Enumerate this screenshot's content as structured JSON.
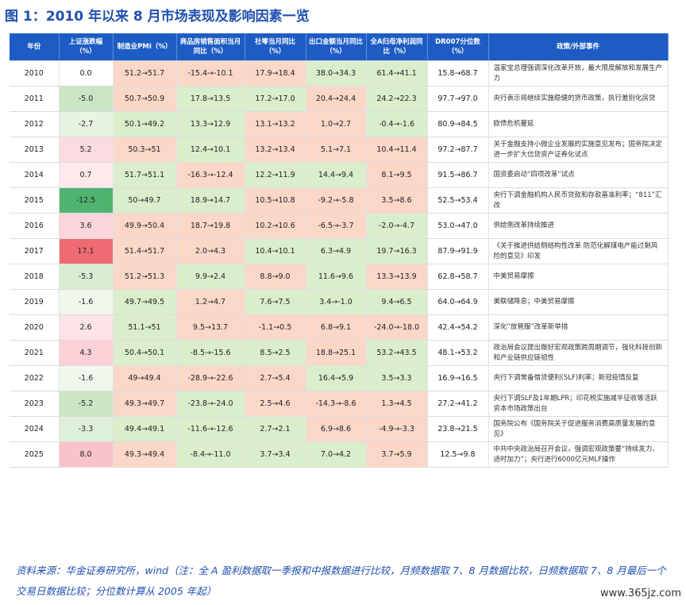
{
  "title": "图 1：2010 年以来 8 月市场表现及影响因素一览",
  "headers": [
    "年份",
    "上证涨跌幅（%）",
    "制造业PMI（%）",
    "商品房销售面积当月同比（%）",
    "社零当月同比（%）",
    "出口金额当月同比（%）",
    "全A归母净利润同比（%）",
    "DR007分位数（%）",
    "政策/外部事件"
  ],
  "rows": [
    {
      "year": "2010",
      "sse": "0.0",
      "pmi": "51.2→51.7",
      "house": "-15.4→-10.1",
      "retail": "17.9→18.4",
      "export": "38.0→34.3",
      "profit": "61.4→41.1",
      "dr": "15.8→68.7",
      "event": "温家宝总理强调深化改革开放，最大限度解放和发展生产力"
    },
    {
      "year": "2011",
      "sse": "-5.0",
      "pmi": "50.7→50.9",
      "house": "17.8→13.5",
      "retail": "17.2→17.0",
      "export": "20.4→24.4",
      "profit": "24.2→22.3",
      "dr": "97.7→97.0",
      "event": "央行表示将继续实施稳健的货币政策，执行差别化房贷"
    },
    {
      "year": "2012",
      "sse": "-2.7",
      "pmi": "50.1→49.2",
      "house": "13.3→12.9",
      "retail": "13.1→13.2",
      "export": "1.0→2.7",
      "profit": "-0.4→-1.6",
      "dr": "80.9→84.5",
      "event": "欧债危机蔓延"
    },
    {
      "year": "2013",
      "sse": "5.2",
      "pmi": "50.3→51",
      "house": "12.4→10.1",
      "retail": "13.2→13.4",
      "export": "5.1→7.1",
      "profit": "10.4→11.4",
      "dr": "97.2→87.7",
      "event": "关于金融支持小微企业发展的实施意见发布；国务院决定进一步扩大信贷资产证券化试点"
    },
    {
      "year": "2014",
      "sse": "0.7",
      "pmi": "51.7→51.1",
      "house": "-16.3→-12.4",
      "retail": "12.2→11.9",
      "export": "14.4→9.4",
      "profit": "8.1→9.5",
      "dr": "91.5→86.7",
      "event": "国资委启动“四项改革”试点"
    },
    {
      "year": "2015",
      "sse": "-12.5",
      "pmi": "50→49.7",
      "house": "18.9→14.7",
      "retail": "10.5→10.8",
      "export": "-9.2→-5.8",
      "profit": "3.5→8.6",
      "dr": "52.5→53.4",
      "event": "央行下调金融机构人民币贷款和存款基准利率；“811”汇改"
    },
    {
      "year": "2016",
      "sse": "3.6",
      "pmi": "49.9→50.4",
      "house": "18.7→19.8",
      "retail": "10.2→10.6",
      "export": "-6.5→-3.7",
      "profit": "-2.0→-4.7",
      "dr": "53.0→47.0",
      "event": "供给侧改革持续推进"
    },
    {
      "year": "2017",
      "sse": "17.1",
      "pmi": "51.4→51.7",
      "house": "2.0→4.3",
      "retail": "10.4→10.1",
      "export": "6.3→4.9",
      "profit": "19.7→16.3",
      "dr": "87.9→91.9",
      "event": "《关于推进供给侧结构性改革 防范化解煤电产能过剩风险的意见》印发"
    },
    {
      "year": "2018",
      "sse": "-5.3",
      "pmi": "51.2→51.3",
      "house": "9.9→2.4",
      "retail": "8.8→9.0",
      "export": "11.6→9.6",
      "profit": "13.3→13.9",
      "dr": "62.8→58.7",
      "event": "中美贸易摩擦"
    },
    {
      "year": "2019",
      "sse": "-1.6",
      "pmi": "49.7→49.5",
      "house": "1.2→4.7",
      "retail": "7.6→7.5",
      "export": "3.4→-1.0",
      "profit": "9.4→6.5",
      "dr": "64.0→64.9",
      "event": "美联储降息；中美贸易摩擦"
    },
    {
      "year": "2020",
      "sse": "2.6",
      "pmi": "51.1→51",
      "house": "9.5→13.7",
      "retail": "-1.1→0.5",
      "export": "6.8→9.1",
      "profit": "-24.0→-18.0",
      "dr": "42.4→54.2",
      "event": "深化“放管服”改革新举措"
    },
    {
      "year": "2021",
      "sse": "4.3",
      "pmi": "50.4→50.1",
      "house": "-8.5→-15.6",
      "retail": "8.5→2.5",
      "export": "18.8→25.1",
      "profit": "53.2→43.5",
      "dr": "48.1→53.2",
      "event": "政治局会议提出做好宏观政策跨周期调节，强化科技创新和产业链供应链韧性"
    },
    {
      "year": "2022",
      "sse": "-1.6",
      "pmi": "49→49.4",
      "house": "-28.9→-22.6",
      "retail": "2.7→5.4",
      "export": "16.4→5.9",
      "profit": "3.5→3.3",
      "dr": "16.9→16.5",
      "event": "央行下调常备借贷便利(SLF)利率；新冠疫情反复"
    },
    {
      "year": "2023",
      "sse": "-5.2",
      "pmi": "49.3→49.7",
      "house": "-23.8→-24.0",
      "retail": "2.5→4.6",
      "export": "-14.3→-8.6",
      "profit": "1.3→4.5",
      "dr": "27.2→41.2",
      "event": "央行下调SLF及1年期LPR；印花税实施减半征收等活跃资本市场政策出台"
    },
    {
      "year": "2024",
      "sse": "-3.3",
      "pmi": "49.4→49.1",
      "house": "-11.6→-12.6",
      "retail": "2.7→2.1",
      "export": "6.9→8.6",
      "profit": "-4.9→-3.3",
      "dr": "23.8→21.5",
      "event": "国务院公布《国务院关于促进服务消费高质量发展的意见》"
    },
    {
      "year": "2025",
      "sse": "8.0",
      "pmi": "49.3→49.4",
      "house": "-8.4→-11.0",
      "retail": "3.7→3.4",
      "export": "7.0→4.2",
      "profit": "3.7→5.9",
      "dr": "12.5→9.8",
      "event": "中共中央政治局召开会议，强调宏观政策要“持续发力、适时加力”；央行进行6000亿元MLF操作"
    }
  ],
  "colors": {
    "sse": [
      "#ffffff",
      "#cbe6c5",
      "#e8f3e2",
      "#fbdbe0",
      "#fde9ec",
      "#4fb36f",
      "#fbd5dc",
      "#ef6b73",
      "#d7edd2",
      "#f1f8ee",
      "#fde3e7",
      "#fbd0d7",
      "#f1f8ee",
      "#cbe6c5",
      "#dff0da",
      "#f9c3cc"
    ],
    "pmi": [
      "red",
      "red",
      "green",
      "red",
      "green",
      "green",
      "red",
      "red",
      "red",
      "green",
      "green",
      "green",
      "red",
      "red",
      "green",
      "red"
    ],
    "house": [
      "red",
      "green",
      "green",
      "green",
      "red",
      "green",
      "red",
      "red",
      "green",
      "red",
      "red",
      "green",
      "red",
      "green",
      "green",
      "green"
    ],
    "retail": [
      "red",
      "green",
      "red",
      "red",
      "green",
      "red",
      "red",
      "green",
      "red",
      "green",
      "red",
      "green",
      "red",
      "red",
      "green",
      "green"
    ],
    "export": [
      "green",
      "red",
      "red",
      "red",
      "green",
      "red",
      "red",
      "green",
      "green",
      "green",
      "red",
      "red",
      "green",
      "red",
      "red",
      "green"
    ],
    "profit": [
      "green",
      "green",
      "green",
      "red",
      "red",
      "red",
      "green",
      "green",
      "red",
      "green",
      "red",
      "green",
      "green",
      "red",
      "red",
      "red"
    ],
    "dr": [
      "white",
      "white",
      "white",
      "white",
      "white",
      "white",
      "white",
      "white",
      "white",
      "white",
      "white",
      "white",
      "white",
      "white",
      "white",
      "white"
    ]
  },
  "source": "资料来源：华金证券研究所，wind（注：全 A 盈利数据取一季报和中报数据进行比较，月频数据取 7、8 月数据比较，日频数据取 7、8 月最后一个交易日数据比较；分位数计算从 2005 年起）",
  "watermark": "www.365jz.com"
}
